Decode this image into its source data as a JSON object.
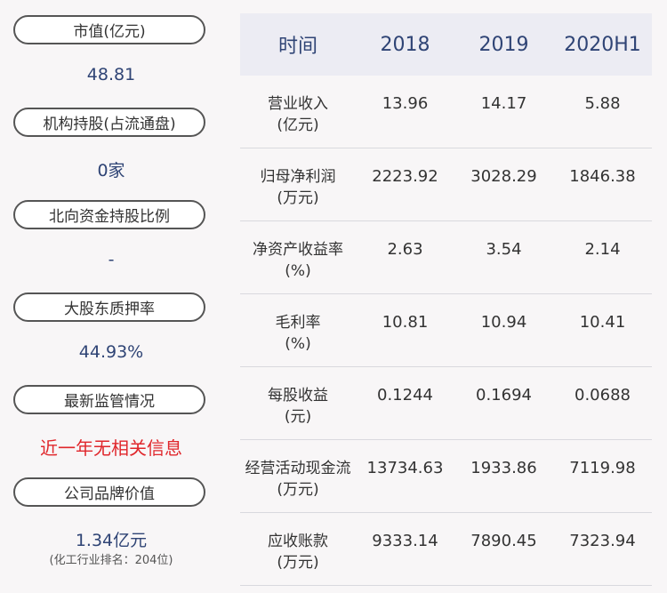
{
  "left": [
    {
      "label": "市值(亿元)",
      "value": "48.81"
    },
    {
      "label": "机构持股(占流通盘)",
      "value": "0家"
    },
    {
      "label": "北向资金持股比例",
      "value": "-"
    },
    {
      "label": "大股东质押率",
      "value": "44.93%"
    },
    {
      "label": "最新监管情况",
      "value": "近一年无相关信息"
    },
    {
      "label": "公司品牌价值",
      "value": "1.34亿元",
      "note": "(化工行业排名：204位)"
    }
  ],
  "table": {
    "headers": [
      "时间",
      "2018",
      "2019",
      "2020H1"
    ],
    "rows": [
      {
        "name": "营业收入",
        "unit": "(亿元)",
        "values": [
          "13.96",
          "14.17",
          "5.88"
        ]
      },
      {
        "name": "归母净利润",
        "unit": "(万元)",
        "values": [
          "2223.92",
          "3028.29",
          "1846.38"
        ]
      },
      {
        "name": "净资产收益率",
        "unit": "(%)",
        "values": [
          "2.63",
          "3.54",
          "2.14"
        ]
      },
      {
        "name": "毛利率",
        "unit": "(%)",
        "values": [
          "10.81",
          "10.94",
          "10.41"
        ]
      },
      {
        "name": "每股收益",
        "unit": "(元)",
        "values": [
          "0.1244",
          "0.1694",
          "0.0688"
        ]
      },
      {
        "name": "经营活动现金流",
        "unit": "(万元)",
        "values": [
          "13734.63",
          "1933.86",
          "7119.98"
        ]
      },
      {
        "name": "应收账款",
        "unit": "(万元)",
        "values": [
          "9333.14",
          "7890.45",
          "7323.94"
        ]
      }
    ]
  },
  "colors": {
    "accent": "#2f4475",
    "alert": "#e0262b",
    "header_bg": "#ececf3"
  }
}
